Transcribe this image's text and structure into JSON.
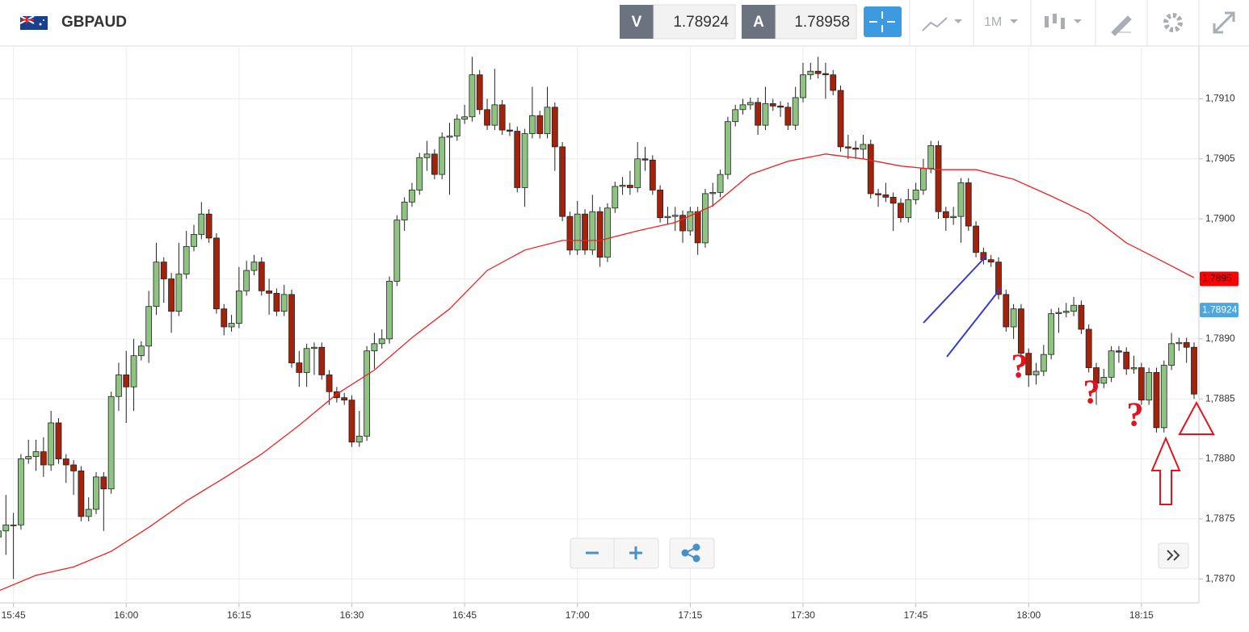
{
  "header": {
    "symbol": "GBPAUD",
    "bid_label": "V",
    "bid": "1.78924",
    "ask_label": "A",
    "ask": "1.78958",
    "timeframe": "1M"
  },
  "chart_data": {
    "type": "candlestick",
    "x": [
      "15:43",
      "15:44",
      "15:45",
      "15:46",
      "15:47",
      "15:48",
      "15:49",
      "15:50",
      "15:51",
      "15:52",
      "15:53",
      "15:54",
      "15:55",
      "15:56",
      "15:57",
      "15:58",
      "15:59",
      "16:00",
      "16:01",
      "16:02",
      "16:03",
      "16:04",
      "16:05",
      "16:06",
      "16:07",
      "16:08",
      "16:09",
      "16:10",
      "16:11",
      "16:12",
      "16:13",
      "16:14",
      "16:15",
      "16:16",
      "16:17",
      "16:18",
      "16:19",
      "16:20",
      "16:21",
      "16:22",
      "16:23",
      "16:24",
      "16:25",
      "16:26",
      "16:27",
      "16:28",
      "16:29",
      "16:30",
      "16:31",
      "16:32",
      "16:33",
      "16:34",
      "16:35",
      "16:36",
      "16:37",
      "16:38",
      "16:39",
      "16:40",
      "16:41",
      "16:42",
      "16:43",
      "16:44",
      "16:45",
      "16:46",
      "16:47",
      "16:48",
      "16:49",
      "16:50",
      "16:51",
      "16:52",
      "16:53",
      "16:54",
      "16:55",
      "16:56",
      "16:57",
      "16:58",
      "16:59",
      "17:00",
      "17:01",
      "17:02",
      "17:03",
      "17:04",
      "17:05",
      "17:06",
      "17:07",
      "17:08",
      "17:09",
      "17:10",
      "17:11",
      "17:12",
      "17:13",
      "17:14",
      "17:15",
      "17:16",
      "17:17",
      "17:18",
      "17:19",
      "17:20",
      "17:21",
      "17:22",
      "17:23",
      "17:24",
      "17:25",
      "17:26",
      "17:27",
      "17:28",
      "17:29",
      "17:30",
      "17:31",
      "17:32",
      "17:33",
      "17:34",
      "17:35",
      "17:36",
      "17:37",
      "17:38",
      "17:39",
      "17:40",
      "17:41",
      "17:42",
      "17:43",
      "17:44",
      "17:45",
      "17:46",
      "17:47",
      "17:48",
      "17:49",
      "17:50",
      "17:51",
      "17:52",
      "17:53",
      "17:54",
      "17:55",
      "17:56",
      "17:57",
      "17:58",
      "17:59",
      "18:00",
      "18:01",
      "18:02",
      "18:03",
      "18:04",
      "18:05",
      "18:06",
      "18:07",
      "18:08",
      "18:09",
      "18:10",
      "18:11",
      "18:12",
      "18:13",
      "18:14",
      "18:15",
      "18:16",
      "18:17",
      "18:18",
      "18:19",
      "18:20",
      "18:21",
      "18:22"
    ],
    "candles": [
      [
        1.78735,
        1.7875,
        1.78725,
        1.7874
      ],
      [
        1.7874,
        1.7877,
        1.7872,
        1.78745
      ],
      [
        1.78745,
        1.78755,
        1.787,
        1.78745
      ],
      [
        1.78745,
        1.78804,
        1.78741,
        1.788
      ],
      [
        1.788,
        1.78816,
        1.78796,
        1.78802
      ],
      [
        1.78802,
        1.78816,
        1.7879,
        1.78806
      ],
      [
        1.78806,
        1.78818,
        1.78785,
        1.78795
      ],
      [
        1.78795,
        1.7884,
        1.7879,
        1.7883
      ],
      [
        1.7883,
        1.78834,
        1.78796,
        1.788
      ],
      [
        1.788,
        1.78804,
        1.7878,
        1.78795
      ],
      [
        1.78795,
        1.78799,
        1.7877,
        1.7879
      ],
      [
        1.7879,
        1.78794,
        1.78748,
        1.78752
      ],
      [
        1.78752,
        1.78768,
        1.78748,
        1.78758
      ],
      [
        1.78758,
        1.78789,
        1.78754,
        1.78785
      ],
      [
        1.78785,
        1.78789,
        1.7874,
        1.78775
      ],
      [
        1.78775,
        1.78856,
        1.78771,
        1.78852
      ],
      [
        1.78852,
        1.7888,
        1.7884,
        1.7887
      ],
      [
        1.7887,
        1.7889,
        1.7883,
        1.7886
      ],
      [
        1.7886,
        1.789,
        1.7884,
        1.78886
      ],
      [
        1.78886,
        1.78898,
        1.78882,
        1.78894
      ],
      [
        1.78894,
        1.7894,
        1.7888,
        1.78927
      ],
      [
        1.78927,
        1.7898,
        1.7892,
        1.78964
      ],
      [
        1.78964,
        1.78968,
        1.7893,
        1.7895
      ],
      [
        1.7895,
        1.78955,
        1.78905,
        1.78923
      ],
      [
        1.78923,
        1.7898,
        1.78919,
        1.78954
      ],
      [
        1.78954,
        1.7899,
        1.7895,
        1.78977
      ],
      [
        1.78977,
        1.78995,
        1.78973,
        1.78987
      ],
      [
        1.78987,
        1.79014,
        1.78983,
        1.79004
      ],
      [
        1.79004,
        1.79008,
        1.7898,
        1.78984
      ],
      [
        1.78984,
        1.78988,
        1.78921,
        1.78925
      ],
      [
        1.78925,
        1.78929,
        1.78903,
        1.7891
      ],
      [
        1.7891,
        1.7892,
        1.78906,
        1.78913
      ],
      [
        1.78913,
        1.7896,
        1.78909,
        1.7894
      ],
      [
        1.7894,
        1.78965,
        1.78936,
        1.78957
      ],
      [
        1.78957,
        1.7897,
        1.78953,
        1.78964
      ],
      [
        1.78964,
        1.78968,
        1.78936,
        1.7894
      ],
      [
        1.7894,
        1.7895,
        1.7892,
        1.78938
      ],
      [
        1.78938,
        1.78942,
        1.78919,
        1.78923
      ],
      [
        1.78923,
        1.78945,
        1.78919,
        1.78937
      ],
      [
        1.78937,
        1.78941,
        1.78876,
        1.7888
      ],
      [
        1.7888,
        1.7889,
        1.7886,
        1.78872
      ],
      [
        1.78872,
        1.78896,
        1.7886,
        1.78892
      ],
      [
        1.78892,
        1.78897,
        1.7887,
        1.78893
      ],
      [
        1.78893,
        1.78897,
        1.78866,
        1.7887
      ],
      [
        1.7887,
        1.78874,
        1.78845,
        1.78856
      ],
      [
        1.78856,
        1.7886,
        1.78847,
        1.78851
      ],
      [
        1.78851,
        1.78855,
        1.78845,
        1.78849
      ],
      [
        1.78849,
        1.78853,
        1.7881,
        1.78814
      ],
      [
        1.78814,
        1.7884,
        1.7881,
        1.78819
      ],
      [
        1.78819,
        1.78894,
        1.78815,
        1.7889
      ],
      [
        1.7889,
        1.78905,
        1.78875,
        1.78896
      ],
      [
        1.78896,
        1.78908,
        1.78892,
        1.789
      ],
      [
        1.789,
        1.78952,
        1.78896,
        1.78948
      ],
      [
        1.78948,
        1.79003,
        1.78944,
        1.78999
      ],
      [
        1.78999,
        1.79018,
        1.7899,
        1.79014
      ],
      [
        1.79014,
        1.7903,
        1.7901,
        1.79024
      ],
      [
        1.79024,
        1.79055,
        1.7902,
        1.79051
      ],
      [
        1.79051,
        1.79065,
        1.7904,
        1.79054
      ],
      [
        1.79054,
        1.79058,
        1.79033,
        1.79037
      ],
      [
        1.79037,
        1.79072,
        1.79033,
        1.79068
      ],
      [
        1.79068,
        1.7908,
        1.7902,
        1.79069
      ],
      [
        1.79069,
        1.79087,
        1.79065,
        1.79083
      ],
      [
        1.79083,
        1.79095,
        1.79079,
        1.79085
      ],
      [
        1.79085,
        1.79135,
        1.79081,
        1.7912
      ],
      [
        1.7912,
        1.79124,
        1.79087,
        1.79091
      ],
      [
        1.79091,
        1.791,
        1.79074,
        1.79078
      ],
      [
        1.79078,
        1.79125,
        1.79074,
        1.79095
      ],
      [
        1.79095,
        1.79099,
        1.7907,
        1.79074
      ],
      [
        1.79074,
        1.7908,
        1.79069,
        1.79073
      ],
      [
        1.79073,
        1.79077,
        1.79022,
        1.79026
      ],
      [
        1.79026,
        1.79075,
        1.7901,
        1.79071
      ],
      [
        1.79071,
        1.7911,
        1.79067,
        1.79086
      ],
      [
        1.79086,
        1.7909,
        1.79067,
        1.79071
      ],
      [
        1.79071,
        1.7911,
        1.79067,
        1.79093
      ],
      [
        1.79093,
        1.79097,
        1.7904,
        1.7906
      ],
      [
        1.7906,
        1.79064,
        1.78998,
        1.79002
      ],
      [
        1.79002,
        1.79006,
        1.7897,
        1.78974
      ],
      [
        1.78974,
        1.79015,
        1.7897,
        1.79004
      ],
      [
        1.79004,
        1.79008,
        1.7897,
        1.78974
      ],
      [
        1.78974,
        1.7902,
        1.7897,
        1.79006
      ],
      [
        1.79006,
        1.7901,
        1.7896,
        1.78968
      ],
      [
        1.78968,
        1.79013,
        1.78964,
        1.79009
      ],
      [
        1.79009,
        1.79031,
        1.79005,
        1.79027
      ],
      [
        1.79027,
        1.79035,
        1.7902,
        1.79028
      ],
      [
        1.79028,
        1.7904,
        1.7902,
        1.79026
      ],
      [
        1.79026,
        1.79064,
        1.79022,
        1.7905
      ],
      [
        1.7905,
        1.7906,
        1.7904,
        1.79049
      ],
      [
        1.79049,
        1.79053,
        1.7902,
        1.79024
      ],
      [
        1.79024,
        1.79028,
        1.78997,
        1.79001
      ],
      [
        1.79001,
        1.7901,
        1.78995,
        1.79002
      ],
      [
        1.79002,
        1.7901,
        1.7899,
        1.79003
      ],
      [
        1.79003,
        1.79007,
        1.7898,
        1.7899
      ],
      [
        1.7899,
        1.7901,
        1.78986,
        1.79006
      ],
      [
        1.79006,
        1.7901,
        1.7897,
        1.7898
      ],
      [
        1.7898,
        1.79025,
        1.78976,
        1.79021
      ],
      [
        1.79021,
        1.7903,
        1.7901,
        1.79022
      ],
      [
        1.79022,
        1.79041,
        1.79018,
        1.79037
      ],
      [
        1.79037,
        1.79085,
        1.79033,
        1.79081
      ],
      [
        1.79081,
        1.79095,
        1.79077,
        1.79091
      ],
      [
        1.79091,
        1.791,
        1.79087,
        1.79095
      ],
      [
        1.79095,
        1.79101,
        1.79091,
        1.79097
      ],
      [
        1.79097,
        1.79101,
        1.7907,
        1.79078
      ],
      [
        1.79078,
        1.7911,
        1.79074,
        1.79096
      ],
      [
        1.79096,
        1.791,
        1.7909,
        1.79094
      ],
      [
        1.79094,
        1.79098,
        1.79085,
        1.79093
      ],
      [
        1.79093,
        1.79097,
        1.79074,
        1.79078
      ],
      [
        1.79078,
        1.7911,
        1.79074,
        1.79101
      ],
      [
        1.79101,
        1.7913,
        1.79097,
        1.7912
      ],
      [
        1.7912,
        1.7913,
        1.79116,
        1.79123
      ],
      [
        1.79123,
        1.79135,
        1.79117,
        1.79121
      ],
      [
        1.79121,
        1.7913,
        1.791,
        1.7912
      ],
      [
        1.7912,
        1.79124,
        1.79103,
        1.79107
      ],
      [
        1.79107,
        1.79111,
        1.79056,
        1.7906
      ],
      [
        1.7906,
        1.7907,
        1.7905,
        1.79059
      ],
      [
        1.79059,
        1.79065,
        1.7905,
        1.79058
      ],
      [
        1.79058,
        1.7907,
        1.7905,
        1.79062
      ],
      [
        1.79062,
        1.79066,
        1.79017,
        1.79021
      ],
      [
        1.79021,
        1.79025,
        1.7901,
        1.7902
      ],
      [
        1.7902,
        1.7903,
        1.79014,
        1.79018
      ],
      [
        1.79018,
        1.79022,
        1.7899,
        1.79013
      ],
      [
        1.79013,
        1.79017,
        1.78997,
        1.79001
      ],
      [
        1.79001,
        1.79025,
        1.78997,
        1.79016
      ],
      [
        1.79016,
        1.7903,
        1.79012,
        1.79024
      ],
      [
        1.79024,
        1.7905,
        1.7902,
        1.79042
      ],
      [
        1.79042,
        1.79065,
        1.79038,
        1.79061
      ],
      [
        1.79061,
        1.79065,
        1.79,
        1.79006
      ],
      [
        1.79006,
        1.7901,
        1.7899,
        1.79001
      ],
      [
        1.79001,
        1.7901,
        1.78995,
        1.79002
      ],
      [
        1.79002,
        1.79034,
        1.7898,
        1.7903
      ],
      [
        1.7903,
        1.79034,
        1.7899,
        1.78994
      ],
      [
        1.78994,
        1.78998,
        1.78968,
        1.78972
      ],
      [
        1.78972,
        1.78976,
        1.78962,
        1.78966
      ],
      [
        1.78966,
        1.7897,
        1.7896,
        1.78964
      ],
      [
        1.78964,
        1.78968,
        1.78933,
        1.78937
      ],
      [
        1.78937,
        1.78941,
        1.78906,
        1.7891
      ],
      [
        1.7891,
        1.78929,
        1.789,
        1.78925
      ],
      [
        1.78925,
        1.78929,
        1.78884,
        1.78888
      ],
      [
        1.78888,
        1.78892,
        1.7886,
        1.7887
      ],
      [
        1.7887,
        1.7888,
        1.78862,
        1.78873
      ],
      [
        1.78873,
        1.78895,
        1.78869,
        1.78887
      ],
      [
        1.78887,
        1.78925,
        1.78883,
        1.78921
      ],
      [
        1.78921,
        1.78926,
        1.78905,
        1.78922
      ],
      [
        1.78922,
        1.7893,
        1.78918,
        1.78923
      ],
      [
        1.78923,
        1.78935,
        1.78919,
        1.78928
      ],
      [
        1.78928,
        1.78932,
        1.78904,
        1.78908
      ],
      [
        1.78908,
        1.78912,
        1.78872,
        1.78876
      ],
      [
        1.78876,
        1.7888,
        1.78845,
        1.78863
      ],
      [
        1.78863,
        1.78875,
        1.78859,
        1.78868
      ],
      [
        1.78868,
        1.78894,
        1.78864,
        1.7889
      ],
      [
        1.7889,
        1.78894,
        1.7888,
        1.78889
      ],
      [
        1.78889,
        1.78893,
        1.7887,
        1.78875
      ],
      [
        1.78875,
        1.78886,
        1.78871,
        1.78876
      ],
      [
        1.78876,
        1.7888,
        1.78845,
        1.78849
      ],
      [
        1.78849,
        1.78876,
        1.78845,
        1.78872
      ],
      [
        1.78872,
        1.78876,
        1.78822,
        1.78826
      ],
      [
        1.78826,
        1.78882,
        1.78822,
        1.78878
      ],
      [
        1.78878,
        1.78905,
        1.78874,
        1.78896
      ],
      [
        1.78896,
        1.78901,
        1.7889,
        1.78897
      ],
      [
        1.78897,
        1.78901,
        1.7888,
        1.78893
      ],
      [
        1.78893,
        1.78897,
        1.7885,
        1.78854
      ]
    ],
    "up_color": "#8fc381",
    "down_color": "#a3220c",
    "ma": {
      "color": "#ee2222",
      "x": [
        "15:43",
        "15:48",
        "15:53",
        "15:58",
        "16:03",
        "16:08",
        "16:13",
        "16:18",
        "16:23",
        "16:28",
        "16:33",
        "16:38",
        "16:43",
        "16:48",
        "16:53",
        "16:58",
        "17:03",
        "17:08",
        "17:13",
        "17:18",
        "17:23",
        "17:28",
        "17:33",
        "17:38",
        "17:43",
        "17:48",
        "17:53",
        "17:58",
        "18:03",
        "18:08",
        "18:13",
        "18:18",
        "18:22"
      ],
      "values": [
        1.7869,
        1.78703,
        1.7871,
        1.78723,
        1.78743,
        1.78765,
        1.78784,
        1.78804,
        1.78828,
        1.78854,
        1.78874,
        1.78901,
        1.78925,
        1.78957,
        1.78974,
        1.78982,
        1.78982,
        1.7899,
        1.78997,
        1.79011,
        1.79037,
        1.79048,
        1.79054,
        1.7905,
        1.79044,
        1.79041,
        1.79041,
        1.79033,
        1.79019,
        1.79004,
        1.7898,
        1.78964,
        1.78951
      ]
    },
    "xlim": [
      "15:43",
      "18:22"
    ],
    "xticks": [
      "15:45",
      "16:00",
      "16:15",
      "16:30",
      "16:45",
      "17:00",
      "17:15",
      "17:30",
      "17:45",
      "18:00",
      "18:15"
    ],
    "ylim": [
      1.7868,
      1.79144
    ],
    "yticks": [
      {
        "value": 1.787,
        "label": "1,7870"
      },
      {
        "value": 1.7875,
        "label": "1,7875"
      },
      {
        "value": 1.788,
        "label": "1,7880"
      },
      {
        "value": 1.7885,
        "label": "1,7885"
      },
      {
        "value": 1.789,
        "label": "1,7890"
      },
      {
        "value": 1.7895,
        "label": "1,7895"
      },
      {
        "value": 1.79,
        "label": "1,7900"
      },
      {
        "value": 1.7905,
        "label": "1,7905"
      },
      {
        "value": 1.791,
        "label": "1,7910"
      }
    ],
    "grid": true,
    "price_tags": [
      {
        "value": 1.7895,
        "label": "1.7895",
        "color": "#ff0000"
      },
      {
        "value": 1.78924,
        "label": "1.78924",
        "color": "#4ea6dc"
      }
    ],
    "annotations": [
      "?",
      "?",
      "?"
    ]
  }
}
